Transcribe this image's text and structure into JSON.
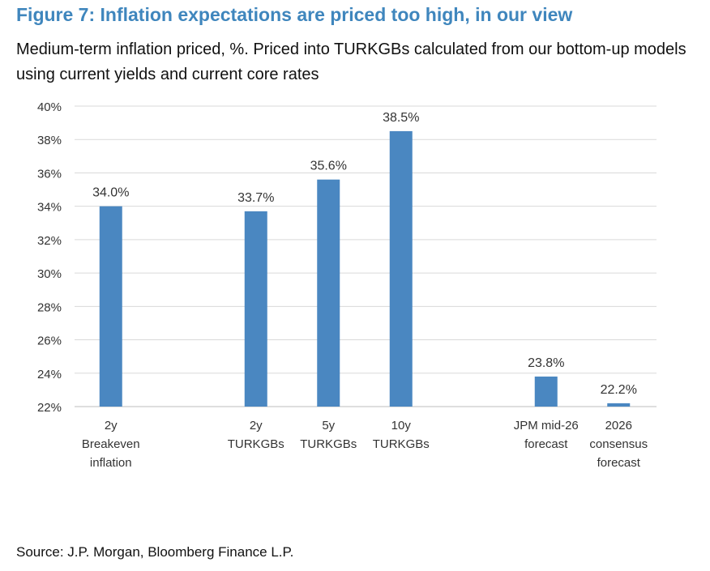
{
  "title": "Figure 7: Inflation expectations are priced too high, in our view",
  "subtitle": "Medium-term inflation priced, %. Priced into TURKGBs calculated from our bottom-up models using current yields and current core rates",
  "source": "Source: J.P. Morgan, Bloomberg Finance L.P.",
  "chart_data": {
    "type": "bar",
    "categories": [
      [
        "2y",
        "Breakeven",
        "inflation"
      ],
      [
        "2y",
        "TURKGBs"
      ],
      [
        "5y",
        "TURKGBs"
      ],
      [
        "10y",
        "TURKGBs"
      ],
      [
        "JPM mid-26",
        "forecast"
      ],
      [
        "2026",
        "consensus",
        "forecast"
      ]
    ],
    "slots": [
      0,
      2,
      3,
      4,
      6,
      7
    ],
    "values": [
      34.0,
      33.7,
      35.6,
      38.5,
      23.8,
      22.2
    ],
    "value_labels": [
      "34.0%",
      "33.7%",
      "35.6%",
      "38.5%",
      "23.8%",
      "22.2%"
    ],
    "yticks": [
      "22%",
      "24%",
      "26%",
      "28%",
      "30%",
      "32%",
      "34%",
      "36%",
      "38%",
      "40%"
    ],
    "ylim": [
      22,
      40
    ],
    "grid": true,
    "bar_color": "#4a87c1"
  }
}
